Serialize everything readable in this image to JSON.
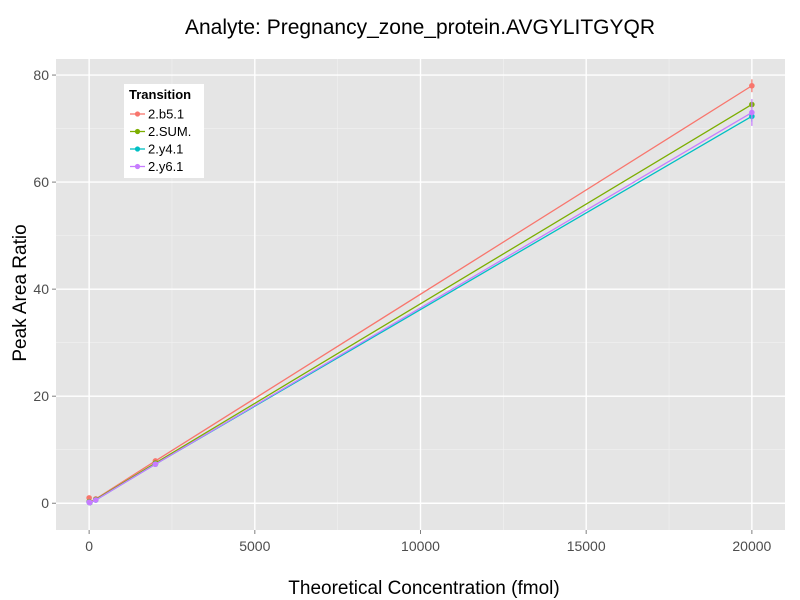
{
  "chart_data": {
    "type": "line",
    "title": "Analyte: Pregnancy_zone_protein.AVGYLITGYQR",
    "xlabel": "Theoretical Concentration (fmol)",
    "ylabel": "Peak Area Ratio",
    "xlim": [
      -1000,
      21000
    ],
    "ylim": [
      -5,
      83
    ],
    "x_ticks": [
      0,
      5000,
      10000,
      15000,
      20000
    ],
    "x_tick_labels": [
      "0",
      "5000",
      "10000",
      "15000",
      "20000"
    ],
    "y_ticks": [
      0,
      20,
      40,
      60,
      80
    ],
    "y_tick_labels": [
      "0",
      "20",
      "40",
      "60",
      "80"
    ],
    "grid": true,
    "legend": {
      "title": "Transition",
      "position": "top-left"
    },
    "x": [
      0,
      20,
      200,
      2000,
      20000
    ],
    "series": [
      {
        "name": "2.b5.1",
        "color": "#F8766D",
        "values": [
          1.0,
          0.2,
          0.8,
          7.9,
          78.0
        ],
        "error": [
          0.3,
          0.1,
          0.1,
          0.3,
          1.2
        ]
      },
      {
        "name": "2.SUM.",
        "color": "#7CAE00",
        "values": [
          0.3,
          0.1,
          0.7,
          7.5,
          74.5
        ],
        "error": [
          0.1,
          0.1,
          0.1,
          0.3,
          0.5
        ]
      },
      {
        "name": "2.y4.1",
        "color": "#00BFC4",
        "values": [
          0.2,
          0.1,
          0.6,
          7.3,
          72.3
        ],
        "error": [
          0.1,
          0.1,
          0.1,
          0.2,
          1.0
        ]
      },
      {
        "name": "2.y6.1",
        "color": "#C77CFF",
        "values": [
          0.2,
          0.1,
          0.6,
          7.3,
          73.0
        ],
        "error": [
          0.1,
          0.1,
          0.1,
          0.2,
          2.5
        ]
      }
    ]
  }
}
